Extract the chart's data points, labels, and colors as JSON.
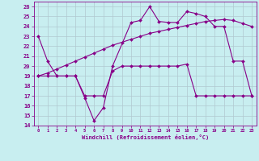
{
  "xlabel": "Windchill (Refroidissement éolien,°C)",
  "bg_color": "#c8eef0",
  "grid_color": "#b0c8d0",
  "line_color": "#880088",
  "ylim": [
    14,
    26.5
  ],
  "xlim": [
    -0.5,
    23.5
  ],
  "yticks": [
    14,
    15,
    16,
    17,
    18,
    19,
    20,
    21,
    22,
    23,
    24,
    25,
    26
  ],
  "xticks": [
    0,
    1,
    2,
    3,
    4,
    5,
    6,
    7,
    8,
    9,
    10,
    11,
    12,
    13,
    14,
    15,
    16,
    17,
    18,
    19,
    20,
    21,
    22,
    23
  ],
  "series1_x": [
    0,
    1,
    2,
    3,
    4,
    5,
    6,
    7,
    8,
    10,
    11,
    12,
    13,
    14,
    15,
    16,
    17,
    18,
    19,
    20,
    21,
    22,
    23
  ],
  "series1_y": [
    23,
    20.5,
    19,
    19,
    19,
    16.8,
    14.5,
    15.8,
    20.0,
    24.4,
    24.6,
    26.0,
    24.5,
    24.4,
    24.4,
    25.5,
    25.3,
    25.0,
    24.0,
    24.0,
    20.5,
    20.5,
    17.0
  ],
  "series2_x": [
    0,
    1,
    2,
    3,
    4,
    5,
    6,
    7,
    8,
    9,
    10,
    11,
    12,
    13,
    14,
    15,
    16,
    17,
    18,
    19,
    20,
    21,
    22,
    23
  ],
  "series2_y": [
    19.0,
    19.3,
    19.7,
    20.1,
    20.5,
    20.9,
    21.3,
    21.7,
    22.1,
    22.4,
    22.7,
    23.0,
    23.3,
    23.5,
    23.7,
    23.9,
    24.1,
    24.3,
    24.5,
    24.6,
    24.7,
    24.6,
    24.3,
    24.0
  ],
  "series3_x": [
    0,
    1,
    2,
    3,
    4,
    5,
    6,
    7,
    8,
    9,
    10,
    11,
    12,
    13,
    14,
    15,
    16,
    17,
    18,
    19,
    20,
    21,
    22,
    23
  ],
  "series3_y": [
    19.0,
    19.0,
    19.0,
    19.0,
    19.0,
    17.0,
    17.0,
    17.0,
    19.5,
    20.0,
    20.0,
    20.0,
    20.0,
    20.0,
    20.0,
    20.0,
    20.2,
    17.0,
    17.0,
    17.0,
    17.0,
    17.0,
    17.0,
    17.0
  ]
}
